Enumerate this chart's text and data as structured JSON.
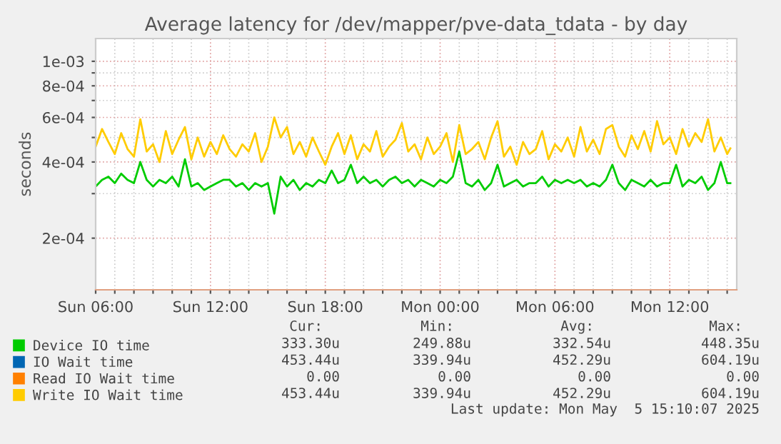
{
  "chart_data": {
    "type": "line",
    "title": "Average latency for /dev/mapper/pve-data_tdata - by day",
    "ylabel": "seconds",
    "log": "y",
    "grid": true,
    "legend": "bottom",
    "marker": "none",
    "line_style": "solid",
    "xlim": [
      "2025-05-04T06:00",
      "2025-05-05T15:30"
    ],
    "ylim": [
      0.000125,
      0.00123
    ],
    "xticks": [
      {
        "value": "2025-05-04T06:00",
        "label": "Sun 06:00"
      },
      {
        "value": "2025-05-04T07:00",
        "label": null
      },
      {
        "value": "2025-05-04T08:00",
        "label": null
      },
      {
        "value": "2025-05-04T09:00",
        "label": null
      },
      {
        "value": "2025-05-04T10:00",
        "label": null
      },
      {
        "value": "2025-05-04T11:00",
        "label": null
      },
      {
        "value": "2025-05-04T12:00",
        "label": "Sun 12:00"
      },
      {
        "value": "2025-05-04T13:00",
        "label": null
      },
      {
        "value": "2025-05-04T14:00",
        "label": null
      },
      {
        "value": "2025-05-04T15:00",
        "label": null
      },
      {
        "value": "2025-05-04T16:00",
        "label": null
      },
      {
        "value": "2025-05-04T17:00",
        "label": null
      },
      {
        "value": "2025-05-04T18:00",
        "label": "Sun 18:00"
      },
      {
        "value": "2025-05-04T19:00",
        "label": null
      },
      {
        "value": "2025-05-04T20:00",
        "label": null
      },
      {
        "value": "2025-05-04T21:00",
        "label": null
      },
      {
        "value": "2025-05-04T22:00",
        "label": null
      },
      {
        "value": "2025-05-04T23:00",
        "label": null
      },
      {
        "value": "2025-05-05T00:00",
        "label": "Mon 00:00"
      },
      {
        "value": "2025-05-05T01:00",
        "label": null
      },
      {
        "value": "2025-05-05T02:00",
        "label": null
      },
      {
        "value": "2025-05-05T03:00",
        "label": null
      },
      {
        "value": "2025-05-05T04:00",
        "label": null
      },
      {
        "value": "2025-05-05T05:00",
        "label": null
      },
      {
        "value": "2025-05-05T06:00",
        "label": "Mon 06:00"
      },
      {
        "value": "2025-05-05T07:00",
        "label": null
      },
      {
        "value": "2025-05-05T08:00",
        "label": null
      },
      {
        "value": "2025-05-05T09:00",
        "label": null
      },
      {
        "value": "2025-05-05T10:00",
        "label": null
      },
      {
        "value": "2025-05-05T11:00",
        "label": null
      },
      {
        "value": "2025-05-05T12:00",
        "label": "Mon 12:00"
      },
      {
        "value": "2025-05-05T13:00",
        "label": null
      },
      {
        "value": "2025-05-05T14:00",
        "label": null
      },
      {
        "value": "2025-05-05T15:00",
        "label": null
      }
    ],
    "yticks": [
      {
        "value": 0.0002,
        "label": "2e-04"
      },
      {
        "value": 0.0003,
        "label": null
      },
      {
        "value": 0.0004,
        "label": "4e-04"
      },
      {
        "value": 0.0005,
        "label": null
      },
      {
        "value": 0.0006,
        "label": "6e-04"
      },
      {
        "value": 0.0007,
        "label": null
      },
      {
        "value": 0.0008,
        "label": "8e-04"
      },
      {
        "value": 0.0009,
        "label": null
      },
      {
        "value": 0.001,
        "label": "1e-03"
      }
    ],
    "x": [
      "2025-05-04T06:00",
      "2025-05-04T06:20",
      "2025-05-04T06:40",
      "2025-05-04T07:00",
      "2025-05-04T07:20",
      "2025-05-04T07:40",
      "2025-05-04T08:00",
      "2025-05-04T08:20",
      "2025-05-04T08:40",
      "2025-05-04T09:00",
      "2025-05-04T09:20",
      "2025-05-04T09:40",
      "2025-05-04T10:00",
      "2025-05-04T10:20",
      "2025-05-04T10:40",
      "2025-05-04T11:00",
      "2025-05-04T11:20",
      "2025-05-04T11:40",
      "2025-05-04T12:00",
      "2025-05-04T12:20",
      "2025-05-04T12:40",
      "2025-05-04T13:00",
      "2025-05-04T13:20",
      "2025-05-04T13:40",
      "2025-05-04T14:00",
      "2025-05-04T14:20",
      "2025-05-04T14:40",
      "2025-05-04T15:00",
      "2025-05-04T15:20",
      "2025-05-04T15:40",
      "2025-05-04T16:00",
      "2025-05-04T16:20",
      "2025-05-04T16:40",
      "2025-05-04T17:00",
      "2025-05-04T17:20",
      "2025-05-04T17:40",
      "2025-05-04T18:00",
      "2025-05-04T18:20",
      "2025-05-04T18:40",
      "2025-05-04T19:00",
      "2025-05-04T19:20",
      "2025-05-04T19:40",
      "2025-05-04T20:00",
      "2025-05-04T20:20",
      "2025-05-04T20:40",
      "2025-05-04T21:00",
      "2025-05-04T21:20",
      "2025-05-04T21:40",
      "2025-05-04T22:00",
      "2025-05-04T22:20",
      "2025-05-04T22:40",
      "2025-05-04T23:00",
      "2025-05-04T23:20",
      "2025-05-04T23:40",
      "2025-05-05T00:00",
      "2025-05-05T00:20",
      "2025-05-05T00:40",
      "2025-05-05T01:00",
      "2025-05-05T01:20",
      "2025-05-05T01:40",
      "2025-05-05T02:00",
      "2025-05-05T02:20",
      "2025-05-05T02:40",
      "2025-05-05T03:00",
      "2025-05-05T03:20",
      "2025-05-05T03:40",
      "2025-05-05T04:00",
      "2025-05-05T04:20",
      "2025-05-05T04:40",
      "2025-05-05T05:00",
      "2025-05-05T05:20",
      "2025-05-05T05:40",
      "2025-05-05T06:00",
      "2025-05-05T06:20",
      "2025-05-05T06:40",
      "2025-05-05T07:00",
      "2025-05-05T07:20",
      "2025-05-05T07:40",
      "2025-05-05T08:00",
      "2025-05-05T08:20",
      "2025-05-05T08:40",
      "2025-05-05T09:00",
      "2025-05-05T09:20",
      "2025-05-05T09:40",
      "2025-05-05T10:00",
      "2025-05-05T10:20",
      "2025-05-05T10:40",
      "2025-05-05T11:00",
      "2025-05-05T11:20",
      "2025-05-05T11:40",
      "2025-05-05T12:00",
      "2025-05-05T12:20",
      "2025-05-05T12:40",
      "2025-05-05T13:00",
      "2025-05-05T13:20",
      "2025-05-05T13:40",
      "2025-05-05T14:00",
      "2025-05-05T14:20",
      "2025-05-05T14:40",
      "2025-05-05T15:00",
      "2025-05-05T15:10"
    ],
    "series": [
      {
        "name": "Device IO time",
        "color": "#00cc00",
        "values": [
          0.00032,
          0.00034,
          0.00035,
          0.00033,
          0.00036,
          0.00034,
          0.00033,
          0.0004,
          0.00034,
          0.00032,
          0.00034,
          0.00033,
          0.00035,
          0.00032,
          0.00041,
          0.00032,
          0.00033,
          0.00031,
          0.00032,
          0.00033,
          0.00034,
          0.00034,
          0.00032,
          0.00033,
          0.00031,
          0.00033,
          0.00032,
          0.00033,
          0.00025,
          0.00035,
          0.00032,
          0.00034,
          0.00031,
          0.00033,
          0.00032,
          0.00034,
          0.00033,
          0.00037,
          0.00033,
          0.00034,
          0.00039,
          0.00033,
          0.00035,
          0.00033,
          0.00034,
          0.00032,
          0.00034,
          0.00035,
          0.00033,
          0.00034,
          0.00032,
          0.00034,
          0.00033,
          0.00032,
          0.00034,
          0.00033,
          0.00035,
          0.00044,
          0.00033,
          0.00032,
          0.00034,
          0.00031,
          0.00033,
          0.00039,
          0.00032,
          0.00033,
          0.00034,
          0.00032,
          0.00033,
          0.00033,
          0.00035,
          0.00032,
          0.00034,
          0.00033,
          0.00034,
          0.00033,
          0.00034,
          0.00032,
          0.00033,
          0.00032,
          0.00034,
          0.00039,
          0.00033,
          0.00031,
          0.00034,
          0.00033,
          0.00032,
          0.00034,
          0.00032,
          0.00033,
          0.00033,
          0.00039,
          0.00032,
          0.00034,
          0.00033,
          0.00035,
          0.00031,
          0.00033,
          0.0004,
          0.00033,
          0.00033
        ]
      },
      {
        "name": "IO Wait time",
        "color": "#0066b3",
        "values": [
          null,
          null,
          null,
          null,
          null,
          null,
          null,
          null,
          null,
          null,
          null,
          null,
          null,
          null,
          null,
          null,
          null,
          null,
          null,
          null,
          null,
          null,
          null,
          null,
          null,
          null,
          null,
          null,
          null,
          null,
          null,
          null,
          null,
          null,
          null,
          null,
          null,
          null,
          null,
          null,
          null,
          null,
          null,
          null,
          null,
          null,
          null,
          null,
          null,
          null,
          null,
          null,
          null,
          null,
          null,
          null,
          null,
          null,
          null,
          null,
          null,
          null,
          null,
          null,
          null,
          null,
          null,
          null,
          null,
          null,
          null,
          null,
          null,
          null,
          null,
          null,
          null,
          null,
          null,
          null,
          null,
          null,
          null,
          null,
          null,
          null,
          null,
          null,
          null,
          null,
          null,
          null,
          null,
          null,
          null,
          null,
          null,
          null,
          null,
          null,
          null
        ]
      },
      {
        "name": "Read IO Wait time",
        "color": "#ff8000",
        "values": [
          null,
          null,
          null,
          null,
          null,
          null,
          null,
          null,
          null,
          null,
          null,
          null,
          null,
          null,
          null,
          null,
          null,
          null,
          null,
          null,
          null,
          null,
          null,
          null,
          null,
          null,
          null,
          null,
          null,
          null,
          null,
          null,
          null,
          null,
          null,
          null,
          null,
          null,
          null,
          null,
          null,
          null,
          null,
          null,
          null,
          null,
          null,
          null,
          null,
          null,
          null,
          null,
          null,
          null,
          null,
          null,
          null,
          null,
          null,
          null,
          null,
          null,
          null,
          null,
          null,
          null,
          null,
          null,
          null,
          null,
          null,
          null,
          null,
          null,
          null,
          null,
          null,
          null,
          null,
          null,
          null,
          null,
          null,
          null,
          null,
          null,
          null,
          null,
          null,
          null,
          null,
          null,
          null,
          null,
          null,
          null,
          null,
          null,
          null,
          null,
          null
        ]
      },
      {
        "name": "Write IO Wait time",
        "color": "#ffcc00",
        "values": [
          0.00046,
          0.00054,
          0.00048,
          0.00043,
          0.00052,
          0.00045,
          0.00042,
          0.00059,
          0.00044,
          0.00047,
          0.0004,
          0.00053,
          0.00043,
          0.00049,
          0.00055,
          0.00041,
          0.0005,
          0.00042,
          0.00048,
          0.00043,
          0.00051,
          0.00045,
          0.00042,
          0.00047,
          0.00044,
          0.00052,
          0.0004,
          0.00046,
          0.0006,
          0.0005,
          0.00055,
          0.00043,
          0.00048,
          0.00042,
          0.0005,
          0.00044,
          0.00039,
          0.00046,
          0.00052,
          0.00043,
          0.00051,
          0.00041,
          0.00047,
          0.00044,
          0.00053,
          0.00042,
          0.00046,
          0.00049,
          0.00057,
          0.00044,
          0.00047,
          0.00041,
          0.0005,
          0.00043,
          0.00046,
          0.00052,
          0.0004,
          0.00056,
          0.00043,
          0.00045,
          0.00048,
          0.00041,
          0.0005,
          0.00058,
          0.00042,
          0.00046,
          0.00039,
          0.00048,
          0.00043,
          0.00045,
          0.00053,
          0.00041,
          0.00047,
          0.00044,
          0.0005,
          0.00042,
          0.00055,
          0.00044,
          0.00049,
          0.00043,
          0.00054,
          0.00056,
          0.00046,
          0.00042,
          0.00051,
          0.00045,
          0.00053,
          0.00044,
          0.00058,
          0.00047,
          0.0005,
          0.00043,
          0.00054,
          0.00046,
          0.00052,
          0.00048,
          0.00059,
          0.00044,
          0.0005,
          0.00043,
          0.000453
        ]
      }
    ],
    "annotations": [
      "Cur:",
      "Min:",
      "Avg:",
      "Max:",
      "333.30u",
      "249.88u",
      "332.54u",
      "448.35u",
      "453.44u",
      "339.94u",
      "452.29u",
      "604.19u",
      "0.00",
      "0.00",
      "0.00",
      "0.00",
      "453.44u",
      "339.94u",
      "452.29u",
      "604.19u",
      "Last update: Mon May  5 15:10:07 2025"
    ]
  }
}
